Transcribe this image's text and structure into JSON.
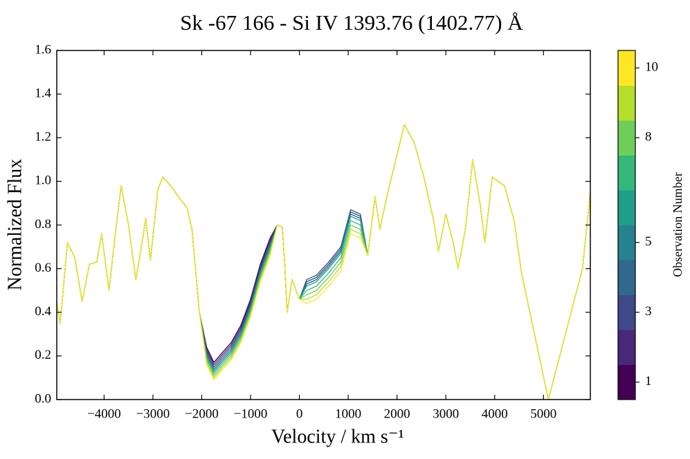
{
  "chart_data": {
    "type": "line",
    "title": "Sk -67 166 - Si IV 1393.76 (1402.77) Å",
    "xlabel": "Velocity / km s⁻¹",
    "ylabel": "Normalized Flux",
    "x": [
      -4970,
      -4900,
      -4750,
      -4600,
      -4450,
      -4300,
      -4150,
      -4050,
      -3900,
      -3750,
      -3650,
      -3500,
      -3350,
      -3200,
      -3150,
      -3050,
      -2900,
      -2800,
      -2600,
      -2450,
      -2300,
      -2200,
      -2050,
      -1900,
      -1750,
      -1600,
      -1400,
      -1200,
      -1000,
      -800,
      -600,
      -450,
      -350,
      -300,
      -250,
      -150,
      0,
      150,
      350,
      600,
      850,
      1050,
      1250,
      1400,
      1550,
      1650,
      1800,
      2000,
      2150,
      2350,
      2550,
      2750,
      2850,
      3000,
      3150,
      3250,
      3400,
      3550,
      3700,
      3800,
      3950,
      4200,
      4400,
      4550,
      5100,
      5800,
      5960
    ],
    "series": [
      {
        "color": "#440154",
        "values": [
          0.45,
          0.35,
          0.72,
          0.65,
          0.45,
          0.62,
          0.63,
          0.76,
          0.5,
          0.8,
          0.98,
          0.8,
          0.55,
          0.75,
          0.83,
          0.64,
          0.96,
          1.02,
          0.97,
          0.92,
          0.88,
          0.78,
          0.4,
          0.24,
          0.17,
          0.21,
          0.26,
          0.34,
          0.46,
          0.62,
          0.74,
          0.8,
          0.79,
          0.62,
          0.4,
          0.55,
          0.46,
          0.53,
          0.55,
          0.61,
          0.68,
          0.85,
          0.83,
          0.66,
          0.93,
          0.78,
          0.94,
          1.12,
          1.26,
          1.18,
          1.02,
          0.82,
          0.68,
          0.85,
          0.72,
          0.6,
          0.78,
          1.1,
          0.9,
          0.72,
          1.02,
          0.98,
          0.82,
          0.58,
          0.0,
          0.6,
          0.95
        ]
      },
      {
        "color": "#482878",
        "values": [
          0.45,
          0.35,
          0.72,
          0.65,
          0.45,
          0.62,
          0.63,
          0.76,
          0.5,
          0.8,
          0.98,
          0.8,
          0.55,
          0.75,
          0.83,
          0.64,
          0.96,
          1.02,
          0.97,
          0.92,
          0.88,
          0.78,
          0.4,
          0.23,
          0.16,
          0.2,
          0.25,
          0.33,
          0.45,
          0.61,
          0.73,
          0.8,
          0.79,
          0.62,
          0.4,
          0.55,
          0.46,
          0.54,
          0.56,
          0.62,
          0.69,
          0.86,
          0.84,
          0.66,
          0.93,
          0.78,
          0.94,
          1.12,
          1.26,
          1.18,
          1.02,
          0.82,
          0.68,
          0.85,
          0.72,
          0.6,
          0.78,
          1.1,
          0.9,
          0.72,
          1.02,
          0.98,
          0.82,
          0.58,
          0.0,
          0.6,
          0.95
        ]
      },
      {
        "color": "#3e4989",
        "values": [
          0.45,
          0.35,
          0.72,
          0.65,
          0.45,
          0.62,
          0.63,
          0.76,
          0.5,
          0.8,
          0.98,
          0.8,
          0.55,
          0.75,
          0.83,
          0.64,
          0.96,
          1.02,
          0.97,
          0.92,
          0.88,
          0.78,
          0.4,
          0.22,
          0.15,
          0.19,
          0.24,
          0.32,
          0.44,
          0.6,
          0.72,
          0.8,
          0.79,
          0.62,
          0.4,
          0.55,
          0.46,
          0.55,
          0.57,
          0.63,
          0.7,
          0.87,
          0.85,
          0.66,
          0.93,
          0.78,
          0.94,
          1.12,
          1.26,
          1.18,
          1.02,
          0.82,
          0.68,
          0.85,
          0.72,
          0.6,
          0.78,
          1.1,
          0.9,
          0.72,
          1.02,
          0.98,
          0.82,
          0.58,
          0.0,
          0.6,
          0.95
        ]
      },
      {
        "color": "#31688e",
        "values": [
          0.45,
          0.35,
          0.72,
          0.65,
          0.45,
          0.62,
          0.63,
          0.76,
          0.5,
          0.8,
          0.98,
          0.8,
          0.55,
          0.75,
          0.83,
          0.64,
          0.96,
          1.02,
          0.97,
          0.92,
          0.88,
          0.78,
          0.4,
          0.21,
          0.14,
          0.18,
          0.23,
          0.31,
          0.43,
          0.59,
          0.71,
          0.8,
          0.79,
          0.62,
          0.4,
          0.55,
          0.46,
          0.54,
          0.56,
          0.62,
          0.69,
          0.86,
          0.84,
          0.66,
          0.93,
          0.78,
          0.94,
          1.12,
          1.26,
          1.18,
          1.02,
          0.82,
          0.68,
          0.85,
          0.72,
          0.6,
          0.78,
          1.1,
          0.9,
          0.72,
          1.02,
          0.98,
          0.82,
          0.58,
          0.0,
          0.6,
          0.95
        ]
      },
      {
        "color": "#26828e",
        "values": [
          0.45,
          0.35,
          0.72,
          0.65,
          0.45,
          0.62,
          0.63,
          0.76,
          0.5,
          0.8,
          0.98,
          0.8,
          0.55,
          0.75,
          0.83,
          0.64,
          0.96,
          1.02,
          0.97,
          0.92,
          0.88,
          0.78,
          0.4,
          0.2,
          0.13,
          0.17,
          0.22,
          0.3,
          0.42,
          0.58,
          0.7,
          0.8,
          0.79,
          0.62,
          0.4,
          0.55,
          0.46,
          0.53,
          0.55,
          0.61,
          0.68,
          0.85,
          0.83,
          0.66,
          0.93,
          0.78,
          0.94,
          1.12,
          1.26,
          1.18,
          1.02,
          0.82,
          0.68,
          0.85,
          0.72,
          0.6,
          0.78,
          1.1,
          0.9,
          0.72,
          1.02,
          0.98,
          0.82,
          0.58,
          0.0,
          0.6,
          0.95
        ]
      },
      {
        "color": "#1f9e89",
        "values": [
          0.45,
          0.35,
          0.72,
          0.65,
          0.45,
          0.62,
          0.63,
          0.76,
          0.5,
          0.8,
          0.98,
          0.8,
          0.55,
          0.75,
          0.83,
          0.64,
          0.96,
          1.02,
          0.97,
          0.92,
          0.88,
          0.78,
          0.4,
          0.2,
          0.13,
          0.17,
          0.22,
          0.3,
          0.42,
          0.58,
          0.7,
          0.8,
          0.79,
          0.62,
          0.4,
          0.55,
          0.46,
          0.52,
          0.54,
          0.6,
          0.67,
          0.84,
          0.82,
          0.66,
          0.93,
          0.78,
          0.94,
          1.12,
          1.26,
          1.18,
          1.02,
          0.82,
          0.68,
          0.85,
          0.72,
          0.6,
          0.78,
          1.1,
          0.9,
          0.72,
          1.02,
          0.98,
          0.82,
          0.58,
          0.0,
          0.6,
          0.95
        ]
      },
      {
        "color": "#35b779",
        "values": [
          0.45,
          0.35,
          0.72,
          0.65,
          0.45,
          0.62,
          0.63,
          0.76,
          0.5,
          0.8,
          0.98,
          0.8,
          0.55,
          0.75,
          0.83,
          0.64,
          0.96,
          1.02,
          0.97,
          0.92,
          0.88,
          0.78,
          0.4,
          0.19,
          0.12,
          0.16,
          0.21,
          0.29,
          0.41,
          0.57,
          0.69,
          0.8,
          0.79,
          0.62,
          0.4,
          0.55,
          0.46,
          0.5,
          0.52,
          0.58,
          0.65,
          0.82,
          0.8,
          0.66,
          0.93,
          0.78,
          0.94,
          1.12,
          1.26,
          1.18,
          1.02,
          0.82,
          0.68,
          0.85,
          0.72,
          0.6,
          0.78,
          1.1,
          0.9,
          0.72,
          1.02,
          0.98,
          0.82,
          0.58,
          0.0,
          0.6,
          0.95
        ]
      },
      {
        "color": "#6ece58",
        "values": [
          0.45,
          0.35,
          0.72,
          0.65,
          0.45,
          0.62,
          0.63,
          0.76,
          0.5,
          0.8,
          0.98,
          0.8,
          0.55,
          0.75,
          0.83,
          0.64,
          0.96,
          1.02,
          0.97,
          0.92,
          0.88,
          0.78,
          0.4,
          0.18,
          0.11,
          0.15,
          0.2,
          0.28,
          0.4,
          0.56,
          0.68,
          0.8,
          0.79,
          0.62,
          0.4,
          0.55,
          0.46,
          0.48,
          0.5,
          0.56,
          0.63,
          0.8,
          0.78,
          0.66,
          0.93,
          0.78,
          0.94,
          1.12,
          1.26,
          1.18,
          1.02,
          0.82,
          0.68,
          0.85,
          0.72,
          0.6,
          0.78,
          1.1,
          0.9,
          0.72,
          1.02,
          0.98,
          0.82,
          0.58,
          0.0,
          0.6,
          0.95
        ]
      },
      {
        "color": "#b5de2b",
        "values": [
          0.45,
          0.35,
          0.72,
          0.65,
          0.45,
          0.62,
          0.63,
          0.76,
          0.5,
          0.8,
          0.98,
          0.8,
          0.55,
          0.75,
          0.83,
          0.64,
          0.96,
          1.02,
          0.97,
          0.92,
          0.88,
          0.78,
          0.4,
          0.17,
          0.1,
          0.14,
          0.19,
          0.27,
          0.39,
          0.55,
          0.67,
          0.8,
          0.79,
          0.62,
          0.4,
          0.55,
          0.46,
          0.46,
          0.48,
          0.54,
          0.61,
          0.78,
          0.76,
          0.66,
          0.93,
          0.78,
          0.94,
          1.12,
          1.26,
          1.18,
          1.02,
          0.82,
          0.68,
          0.85,
          0.72,
          0.6,
          0.78,
          1.1,
          0.9,
          0.72,
          1.02,
          0.98,
          0.82,
          0.58,
          0.0,
          0.6,
          0.95
        ]
      },
      {
        "color": "#fde725",
        "values": [
          0.45,
          0.35,
          0.72,
          0.65,
          0.45,
          0.62,
          0.63,
          0.76,
          0.5,
          0.8,
          0.98,
          0.8,
          0.55,
          0.75,
          0.83,
          0.64,
          0.96,
          1.02,
          0.97,
          0.92,
          0.88,
          0.78,
          0.4,
          0.16,
          0.09,
          0.13,
          0.18,
          0.26,
          0.38,
          0.54,
          0.66,
          0.8,
          0.79,
          0.62,
          0.4,
          0.55,
          0.46,
          0.44,
          0.46,
          0.52,
          0.59,
          0.76,
          0.74,
          0.66,
          0.93,
          0.78,
          0.94,
          1.12,
          1.26,
          1.18,
          1.02,
          0.82,
          0.68,
          0.85,
          0.72,
          0.6,
          0.78,
          1.1,
          0.9,
          0.72,
          1.02,
          0.98,
          0.82,
          0.58,
          0.0,
          0.6,
          0.95
        ]
      }
    ],
    "xlim": [
      -4970,
      5960
    ],
    "xticks": [
      {
        "value": -4000,
        "label": "−4000"
      },
      {
        "value": -3000,
        "label": "−3000"
      },
      {
        "value": -2000,
        "label": "−2000"
      },
      {
        "value": -1000,
        "label": "−1000"
      },
      0,
      1000,
      2000,
      3000,
      4000,
      5000
    ],
    "ylim": [
      0,
      1.6
    ],
    "yticks": [
      {
        "value": 0,
        "label": "0.0"
      },
      0.2,
      0.4,
      0.6,
      0.8,
      {
        "value": 1,
        "label": "1.0"
      },
      1.2,
      1.4,
      1.6
    ],
    "colorbar": {
      "label": "Observation Number",
      "lim": [
        0.5,
        10.5
      ],
      "ticks": [
        1,
        3,
        5,
        8,
        10
      ]
    }
  }
}
